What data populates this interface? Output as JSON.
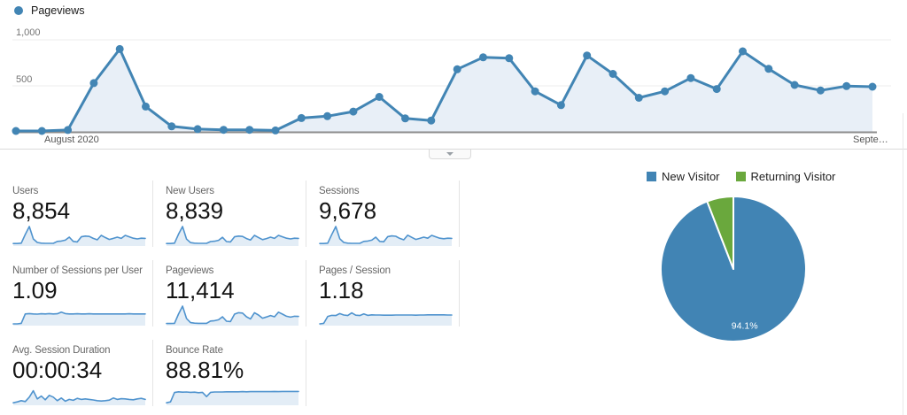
{
  "colors": {
    "chart_line": "#4285b4",
    "chart_area": "#e8eff7",
    "spark_line": "#4f93ce",
    "spark_area": "#e3edf6",
    "grid_line": "#ececec",
    "axis_line": "#8c8c8c",
    "pie_blue": "#4184b4",
    "pie_green": "#6aa83d"
  },
  "timeline_legend": {
    "label": "Pageviews"
  },
  "chart_data": [
    {
      "id": "pageviews-over-time",
      "type": "line",
      "title": "Pageviews",
      "x_axis_labels": [
        "August 2020",
        "Septe…"
      ],
      "y_tick_labels": [
        "1,000",
        "500"
      ],
      "y_ticks": [
        1000,
        500
      ],
      "ylim": [
        0,
        1000
      ],
      "grid": true,
      "legend_position": "top-left",
      "series": [
        {
          "name": "Pageviews",
          "values": [
            10,
            10,
            20,
            530,
            900,
            275,
            60,
            30,
            22,
            22,
            15,
            150,
            170,
            220,
            380,
            146,
            123,
            680,
            810,
            800,
            440,
            290,
            830,
            630,
            370,
            440,
            585,
            465,
            875,
            685,
            510,
            450,
            497,
            490
          ]
        }
      ]
    },
    {
      "id": "visitor-type",
      "type": "pie",
      "legend_position": "top",
      "slices": [
        {
          "label": "New Visitor",
          "value": 94.1,
          "color": "#4184b4",
          "data_label": "94.1%"
        },
        {
          "label": "Returning Visitor",
          "value": 5.9,
          "color": "#6aa83d",
          "data_label": ""
        }
      ]
    }
  ],
  "cards": [
    {
      "label": "Users",
      "value": "8,854",
      "spark": [
        4,
        4,
        6,
        55,
        100,
        30,
        10,
        6,
        5,
        5,
        5,
        16,
        18,
        23,
        40,
        16,
        13,
        42,
        46,
        44,
        33,
        25,
        50,
        38,
        27,
        33,
        40,
        33,
        50,
        42,
        34,
        30,
        34,
        33
      ]
    },
    {
      "label": "New Users",
      "value": "8,839",
      "spark": [
        4,
        4,
        6,
        56,
        100,
        29,
        9,
        6,
        5,
        5,
        5,
        15,
        17,
        22,
        39,
        15,
        13,
        42,
        46,
        44,
        32,
        24,
        50,
        38,
        26,
        32,
        40,
        33,
        50,
        42,
        34,
        30,
        34,
        33
      ]
    },
    {
      "label": "Sessions",
      "value": "9,678",
      "spark": [
        4,
        4,
        6,
        54,
        100,
        31,
        10,
        6,
        5,
        5,
        5,
        16,
        18,
        23,
        40,
        16,
        14,
        43,
        47,
        45,
        33,
        25,
        51,
        39,
        27,
        33,
        40,
        34,
        50,
        42,
        34,
        31,
        34,
        33
      ]
    },
    {
      "label": "Number of Sessions per User",
      "value": "1.09",
      "spark": [
        0,
        0,
        3,
        56,
        58,
        56,
        55,
        57,
        56,
        58,
        56,
        57,
        66,
        58,
        56,
        56,
        57,
        56,
        56,
        57,
        56,
        56,
        56,
        56,
        56,
        56,
        56,
        56,
        56,
        57,
        56,
        56,
        56,
        56
      ]
    },
    {
      "label": "Pageviews",
      "value": "11,414",
      "spark": [
        2,
        2,
        3,
        55,
        100,
        30,
        7,
        4,
        3,
        3,
        3,
        16,
        18,
        23,
        40,
        15,
        13,
        55,
        63,
        61,
        40,
        28,
        63,
        50,
        32,
        39,
        47,
        40,
        66,
        55,
        43,
        38,
        43,
        42
      ]
    },
    {
      "label": "Pages / Session",
      "value": "1.18",
      "spark": [
        0,
        3,
        42,
        48,
        47,
        58,
        50,
        47,
        62,
        49,
        47,
        56,
        48,
        51,
        50,
        50,
        49,
        49,
        49,
        50,
        50,
        50,
        50,
        50,
        49,
        50,
        50,
        51,
        51,
        51,
        51,
        51,
        50,
        50
      ]
    },
    {
      "label": "Avg. Session Duration",
      "value": "00:00:34",
      "spark": [
        4,
        9,
        16,
        11,
        36,
        72,
        26,
        42,
        21,
        46,
        36,
        16,
        31,
        13,
        23,
        18,
        29,
        23,
        26,
        23,
        20,
        16,
        14,
        16,
        19,
        31,
        23,
        27,
        26,
        23,
        21,
        26,
        29,
        23
      ]
    },
    {
      "label": "Bounce Rate",
      "value": "88.81%",
      "spark": [
        4,
        9,
        62,
        66,
        64,
        65,
        63,
        64,
        61,
        63,
        39,
        63,
        65,
        65,
        65,
        66,
        66,
        66,
        66,
        67,
        66,
        67,
        67,
        67,
        67,
        67,
        67,
        68,
        67,
        68,
        68,
        68,
        68,
        68
      ]
    }
  ]
}
